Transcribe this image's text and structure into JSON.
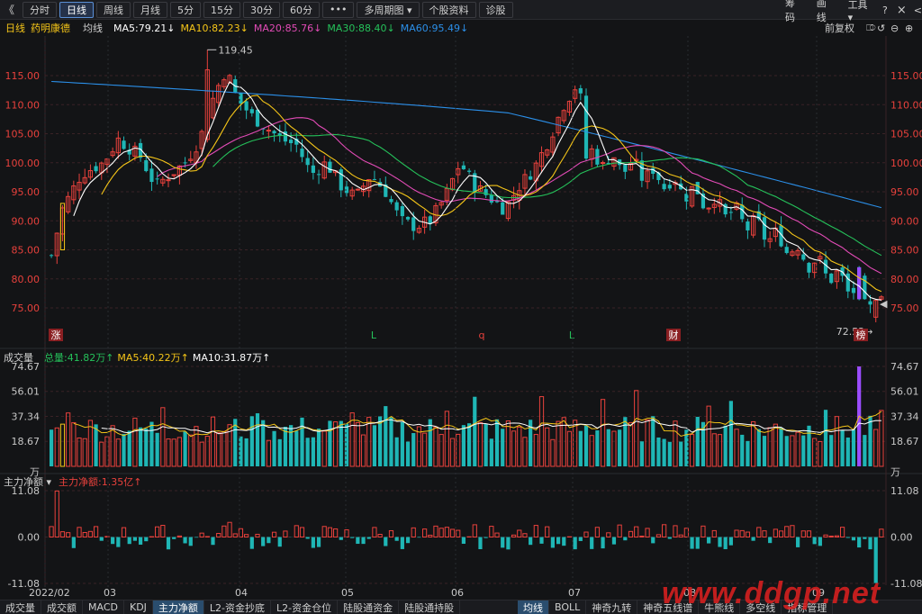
{
  "toolbar": {
    "back_glyph": "《",
    "tabs": [
      "分时",
      "日线",
      "周线",
      "月线",
      "5分",
      "15分",
      "30分",
      "60分",
      "•••",
      "多周期图 ▾",
      "个股资料",
      "诊股"
    ],
    "active_index": 1,
    "right_items": [
      "筹码",
      "画线",
      "工具 ▾"
    ],
    "help_glyph": "?",
    "close_glyph": "×",
    "left_glyph": "<"
  },
  "info": {
    "period": "日线",
    "stock_name": "药明康德",
    "ma_label": "均线",
    "ma5": "MA5:79.21↓",
    "ma10": "MA10:82.23↓",
    "ma20": "MA20:85.76↓",
    "ma30": "MA30:88.40↓",
    "ma60": "MA60:95.49↓",
    "adjust": "前复权"
  },
  "colors": {
    "up": "#e8413c",
    "down": "#1fb6b5",
    "ma5": "#ffffff",
    "ma10": "#f5c518",
    "ma20": "#e24bb6",
    "ma30": "#25c15a",
    "ma60": "#2b8fe8",
    "grid": "#3a2226",
    "axis_text": "#e8413c",
    "gray_text": "#c8c8c8"
  },
  "volume_panel": {
    "title": "成交量",
    "total": "总量:41.82万↑",
    "ma5": "MA5:40.22万↑",
    "ma10": "MA10:31.87万↑",
    "axis": [
      "74.67",
      "56.01",
      "37.34",
      "18.67",
      "万"
    ]
  },
  "flow_panel": {
    "title": "主力净额 ▾",
    "value": "主力净额:1.35亿↑",
    "axis": [
      "11.08",
      "0.00",
      "-11.08"
    ]
  },
  "price_axis": [
    "115.00",
    "110.00",
    "105.00",
    "100.00",
    "95.00",
    "90.00",
    "85.00",
    "80.00",
    "75.00"
  ],
  "annotations": {
    "high": "119.45",
    "low": "72.52",
    "events": [
      "涨",
      "L",
      "q",
      "L",
      "财",
      "榜"
    ]
  },
  "date_axis": [
    "2022/02",
    "03",
    "04",
    "05",
    "06",
    "07",
    "08",
    "09"
  ],
  "bottom_tabs_left": [
    "成交量",
    "成交额",
    "MACD",
    "KDJ",
    "主力净额",
    "L2-资金抄底",
    "L2-资金仓位",
    "陆股通资金",
    "陆股通持股"
  ],
  "bottom_tabs_right": [
    "均线",
    "BOLL",
    "神奇九转",
    "神奇五线谱",
    "牛熊线",
    "多空线",
    "指标管理"
  ],
  "bottom_active_left": 4,
  "bottom_active_right": 0,
  "watermark": "www.ddgp.net",
  "chart_data": {
    "type": "candlestick",
    "y_range_price": [
      70,
      122
    ],
    "ohlc": [],
    "volume_max": 74.67,
    "flow_range": [
      -11.08,
      11.08
    ]
  }
}
